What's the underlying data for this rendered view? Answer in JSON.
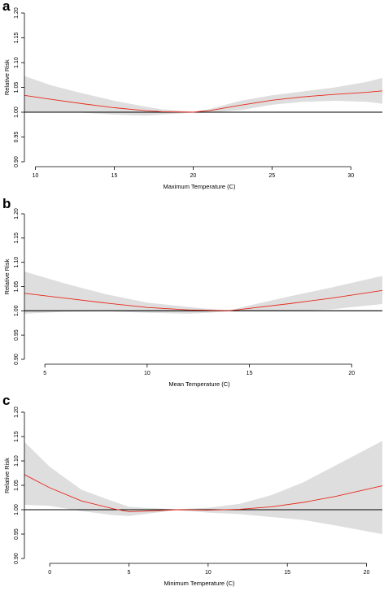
{
  "chart_data": [
    {
      "panel": "a",
      "type": "line",
      "xlabel": "Maximum Temperature (C)",
      "ylabel": "Relative Risk",
      "xlim": [
        9.3,
        32
      ],
      "ylim": [
        0.9,
        1.2
      ],
      "xticks": [
        10,
        15,
        20,
        25,
        30
      ],
      "yticks": [
        0.9,
        0.95,
        1.0,
        1.05,
        1.1,
        1.15,
        1.2
      ],
      "ytick_labels": [
        "0.90",
        "0.95",
        "1.00",
        "1.05",
        "1.10",
        "1.15",
        "1.20"
      ],
      "reference_line": 1.0,
      "series": [
        {
          "x": [
            9.3,
            11,
            13,
            15,
            17,
            18,
            20,
            21,
            23,
            25,
            27,
            29,
            31,
            32
          ],
          "y": [
            1.034,
            1.026,
            1.017,
            1.009,
            1.003,
            1.001,
            1.0,
            1.003,
            1.014,
            1.024,
            1.031,
            1.036,
            1.04,
            1.043
          ],
          "lower": [
            1.0,
            1.001,
            0.999,
            0.995,
            0.993,
            0.995,
            0.999,
            0.999,
            1.004,
            1.015,
            1.021,
            1.023,
            1.021,
            1.017
          ],
          "upper": [
            1.073,
            1.054,
            1.038,
            1.023,
            1.011,
            1.006,
            1.001,
            1.006,
            1.023,
            1.034,
            1.042,
            1.05,
            1.061,
            1.069
          ],
          "color": "#e8291c",
          "band_color": "#dedede"
        }
      ]
    },
    {
      "panel": "b",
      "type": "line",
      "xlabel": "Mean Temperature (C)",
      "ylabel": "Relative Risk",
      "xlim": [
        4,
        21.5
      ],
      "ylim": [
        0.9,
        1.2
      ],
      "xticks": [
        5,
        10,
        15,
        20
      ],
      "yticks": [
        0.9,
        0.95,
        1.0,
        1.05,
        1.1,
        1.15,
        1.2
      ],
      "ytick_labels": [
        "0.90",
        "0.95",
        "1.00",
        "1.05",
        "1.10",
        "1.15",
        "1.20"
      ],
      "reference_line": 1.0,
      "series": [
        {
          "x": [
            4,
            6,
            8,
            10,
            12,
            13,
            14,
            15,
            17,
            19,
            21.5
          ],
          "y": [
            1.036,
            1.026,
            1.016,
            1.007,
            1.002,
            1.001,
            1.0,
            1.005,
            1.015,
            1.026,
            1.042
          ],
          "lower": [
            0.994,
            0.998,
            0.999,
            0.996,
            0.994,
            0.996,
            0.999,
            0.999,
            0.999,
            1.003,
            1.014
          ],
          "upper": [
            1.081,
            1.056,
            1.034,
            1.017,
            1.008,
            1.004,
            1.001,
            1.011,
            1.03,
            1.048,
            1.072
          ],
          "color": "#e8291c",
          "band_color": "#dedede"
        }
      ]
    },
    {
      "panel": "c",
      "type": "line",
      "xlabel": "Minimum Temperature (C)",
      "ylabel": "Relative Risk",
      "xlim": [
        -1.6,
        21
      ],
      "ylim": [
        0.9,
        1.2
      ],
      "xticks": [
        0,
        5,
        10,
        15,
        20
      ],
      "yticks": [
        0.9,
        0.95,
        1.0,
        1.05,
        1.1,
        1.15,
        1.2
      ],
      "ytick_labels": [
        "0.90",
        "0.95",
        "1.00",
        "1.05",
        "1.10",
        "1.15",
        "1.20"
      ],
      "reference_line": 1.0,
      "series": [
        {
          "x": [
            -1.6,
            0,
            2,
            4,
            5,
            6,
            8,
            10,
            12,
            14,
            16,
            18,
            21
          ],
          "y": [
            1.072,
            1.045,
            1.018,
            1.002,
            0.996,
            0.997,
            1.0,
            0.999,
            1.001,
            1.006,
            1.015,
            1.027,
            1.049
          ],
          "lower": [
            1.01,
            1.008,
            0.997,
            0.989,
            0.987,
            0.991,
            0.999,
            0.994,
            0.991,
            0.985,
            0.979,
            0.968,
            0.95
          ],
          "upper": [
            1.139,
            1.088,
            1.041,
            1.017,
            1.006,
            1.004,
            1.001,
            1.004,
            1.012,
            1.03,
            1.056,
            1.09,
            1.141
          ],
          "color": "#e8291c",
          "band_color": "#dedede"
        }
      ]
    }
  ]
}
